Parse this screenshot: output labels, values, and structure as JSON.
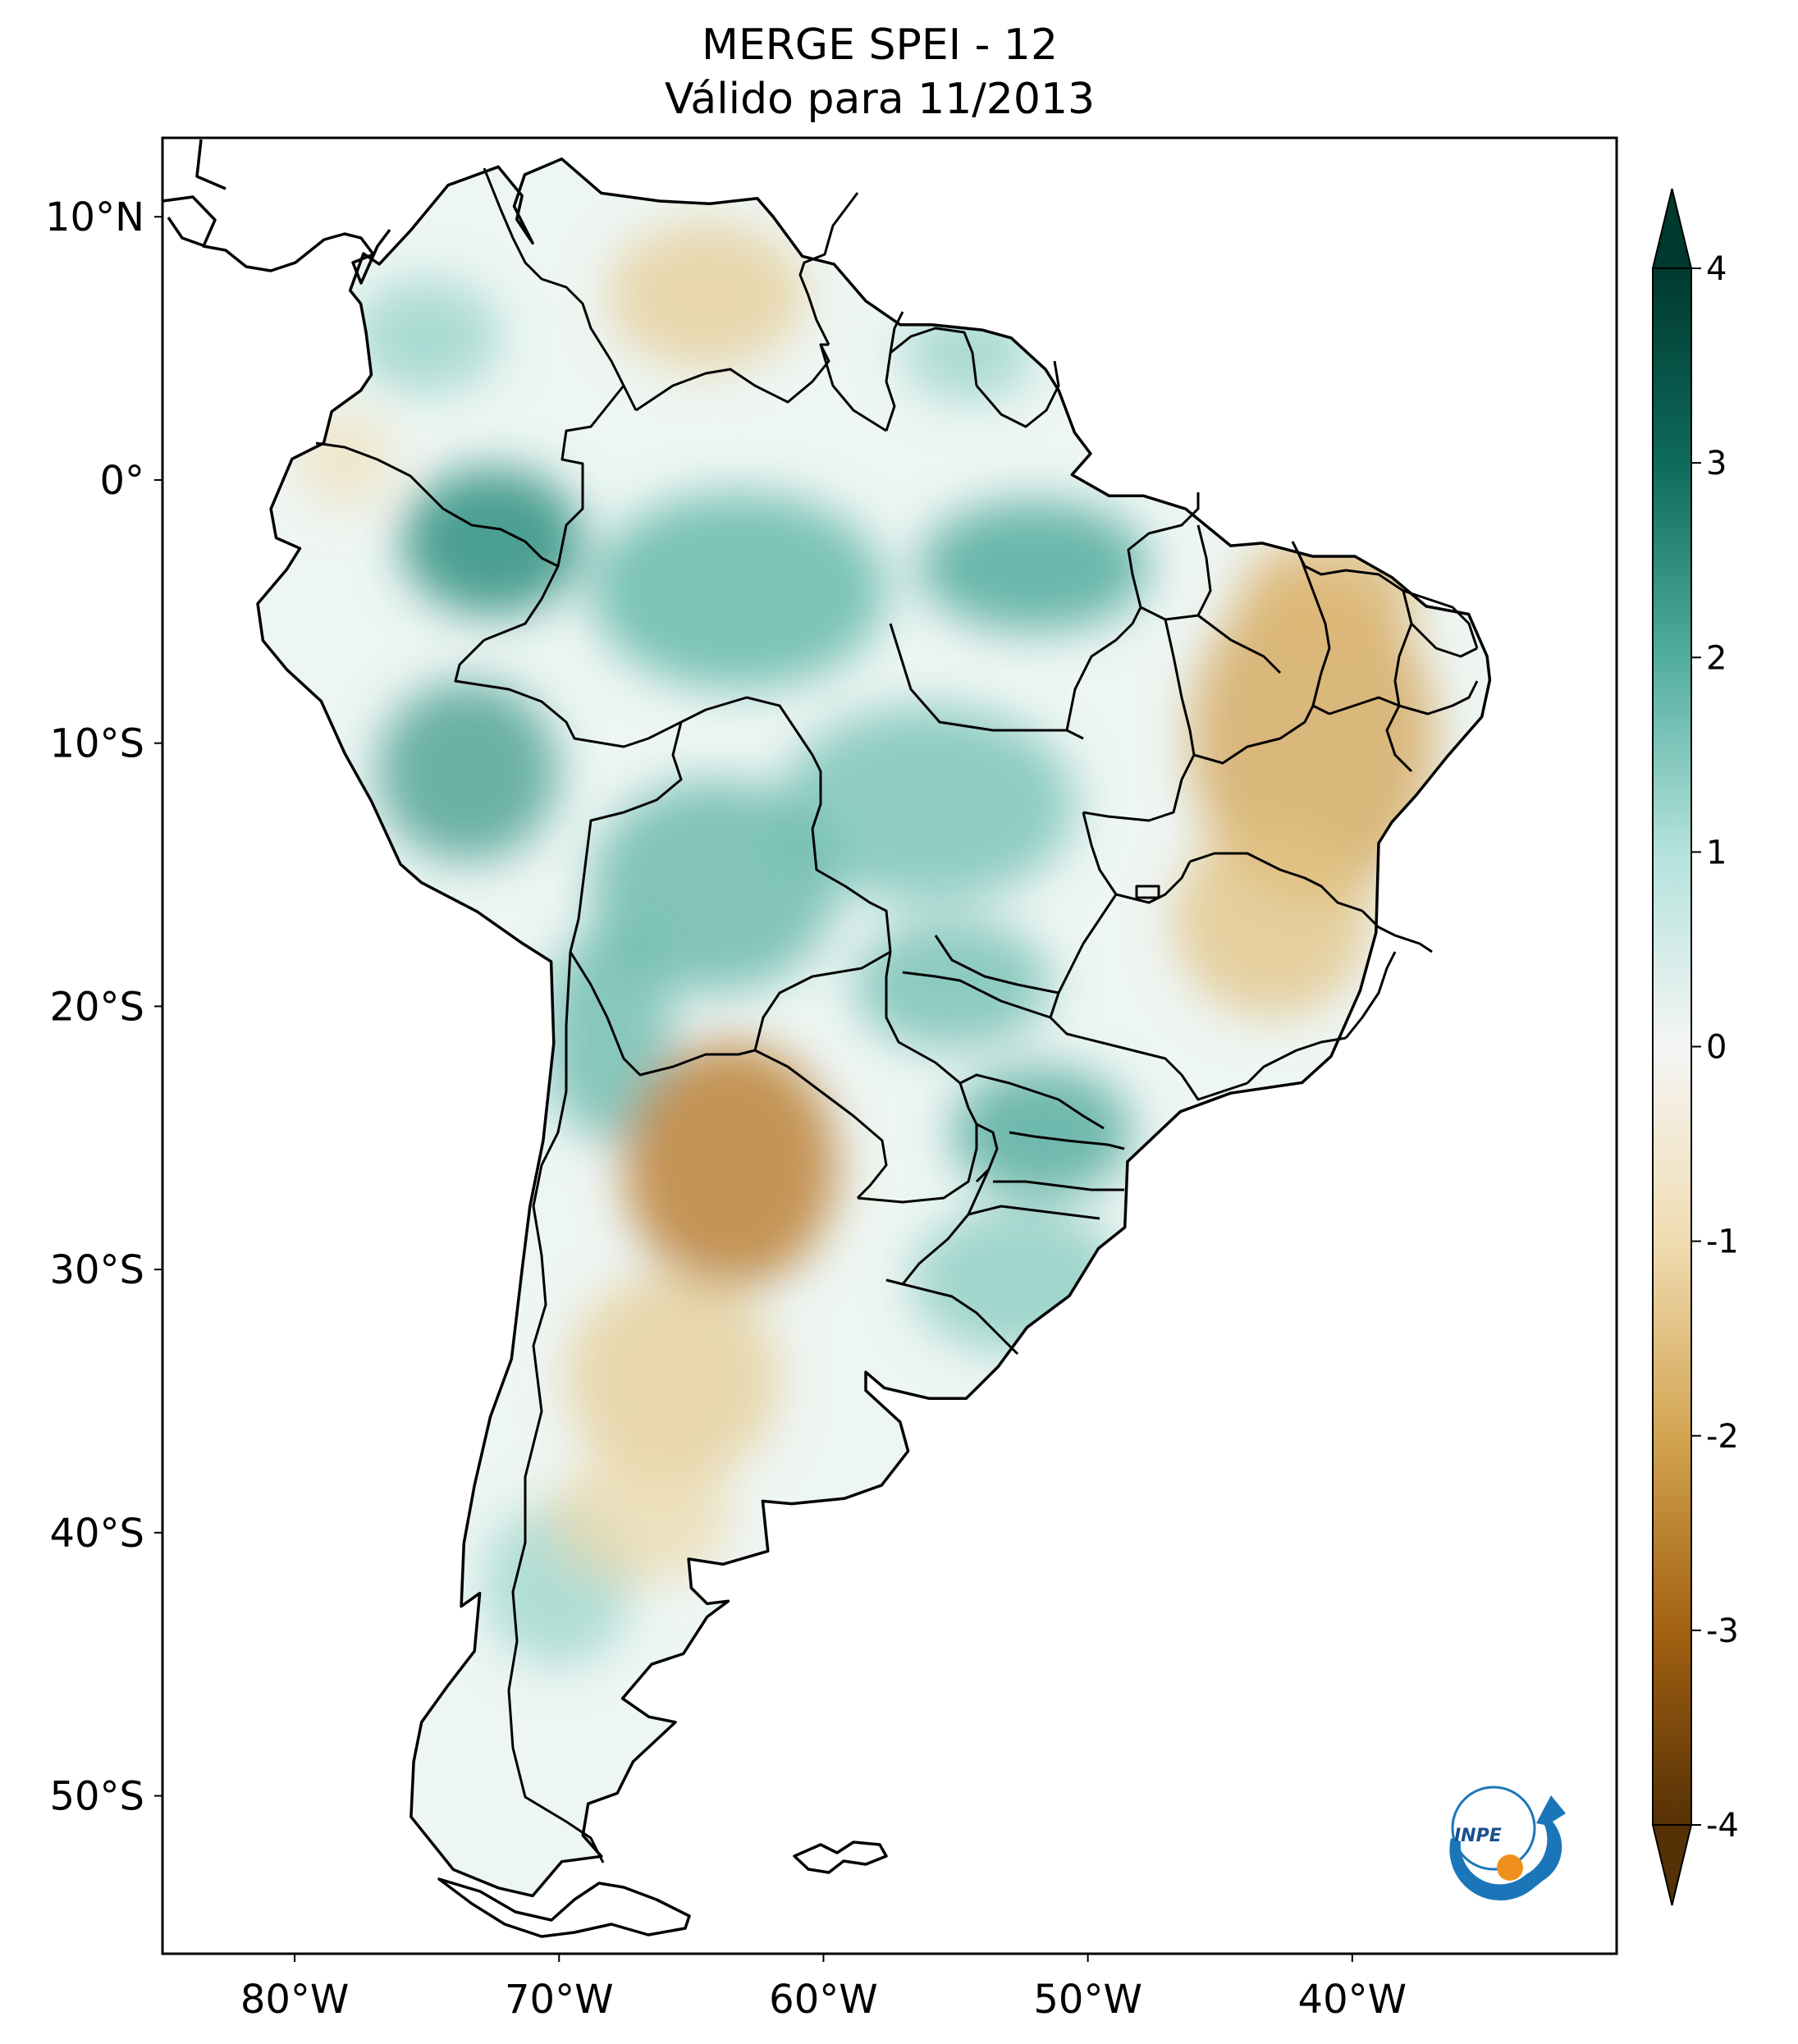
{
  "title": {
    "line1": "MERGE   SPEI - 12",
    "line2": "Válido para 11/2013"
  },
  "map": {
    "lon_range": [
      -85,
      -30
    ],
    "lat_range": [
      -56,
      13
    ],
    "x_ticks": [
      {
        "value": -80,
        "label": "80°W"
      },
      {
        "value": -70,
        "label": "70°W"
      },
      {
        "value": -60,
        "label": "60°W"
      },
      {
        "value": -50,
        "label": "50°W"
      },
      {
        "value": -40,
        "label": "40°W"
      }
    ],
    "y_ticks": [
      {
        "value": 10,
        "label": "10°N"
      },
      {
        "value": 0,
        "label": "0°"
      },
      {
        "value": -10,
        "label": "10°S"
      },
      {
        "value": -20,
        "label": "20°S"
      },
      {
        "value": -30,
        "label": "30°S"
      },
      {
        "value": -40,
        "label": "40°S"
      },
      {
        "value": -50,
        "label": "50°S"
      }
    ]
  },
  "colorbar": {
    "min": -4,
    "max": 4,
    "ticks": [
      {
        "value": 4,
        "label": "4"
      },
      {
        "value": 3,
        "label": "3"
      },
      {
        "value": 2,
        "label": "2"
      },
      {
        "value": 1,
        "label": "1"
      },
      {
        "value": 0,
        "label": "0"
      },
      {
        "value": -1,
        "label": "-1"
      },
      {
        "value": -2,
        "label": "-2"
      },
      {
        "value": -3,
        "label": "-3"
      },
      {
        "value": -4,
        "label": "-4"
      }
    ],
    "colors": {
      "p4": "#00392d",
      "p3": "#0f6a5e",
      "p2": "#52ad9f",
      "p1": "#b3e2db",
      "zero": "#f5f5f5",
      "n1": "#f0dcb1",
      "n2": "#d2a452",
      "n3": "#a26112",
      "n4": "#563105"
    }
  },
  "logo": {
    "text": "INPE",
    "ring_color": "#1a76b8",
    "dot_color": "#f0901c"
  }
}
